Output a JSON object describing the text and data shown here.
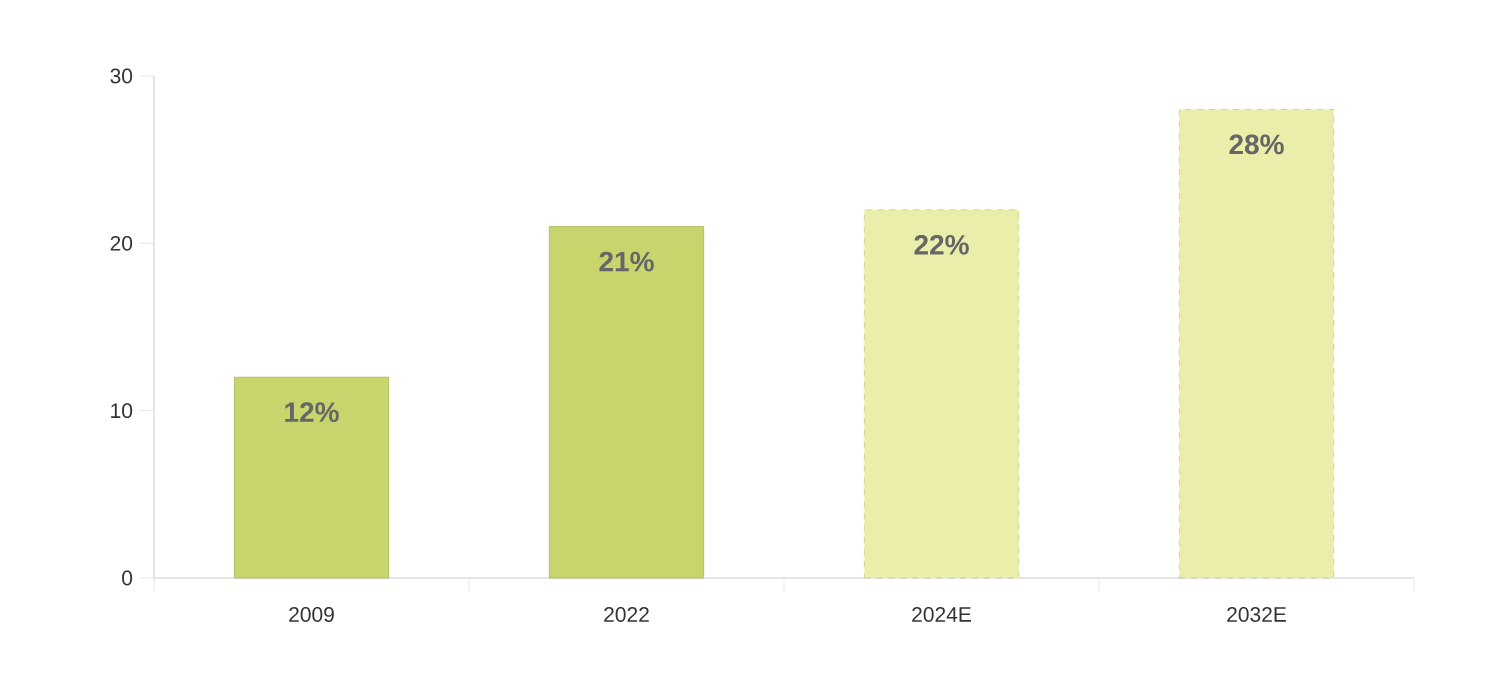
{
  "chart_data": {
    "type": "bar",
    "categories": [
      "2009",
      "2022",
      "2024E",
      "2032E"
    ],
    "series": [
      {
        "color": "#c8d46c",
        "line_style": "solid",
        "values": [
          12,
          21,
          null,
          null
        ],
        "value_labels": [
          "12%",
          "21%",
          null,
          null
        ]
      },
      {
        "color": "#ebeeaa",
        "line_style": "dashed",
        "values": [
          null,
          null,
          22,
          28
        ],
        "value_labels": [
          null,
          null,
          "22%",
          "28%"
        ]
      }
    ],
    "ylim": [
      0,
      30
    ],
    "yticks": [
      0,
      10,
      20,
      30
    ]
  }
}
